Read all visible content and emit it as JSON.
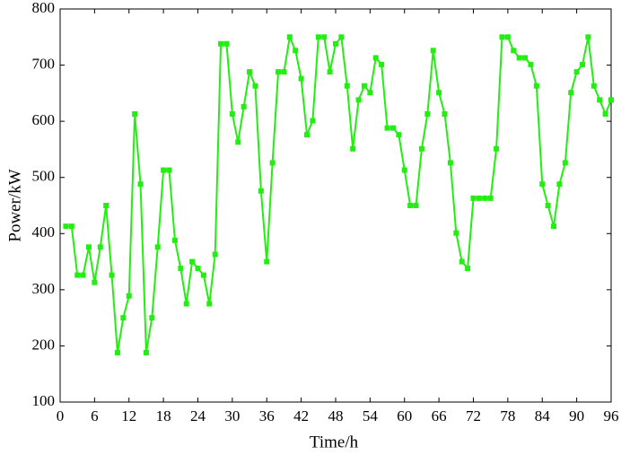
{
  "chart_data": {
    "type": "line",
    "x_label": "Time/h",
    "y_label": "Power/kW",
    "x": [
      1,
      2,
      3,
      4,
      5,
      6,
      7,
      8,
      9,
      10,
      11,
      12,
      13,
      14,
      15,
      16,
      17,
      18,
      19,
      20,
      21,
      22,
      23,
      24,
      25,
      26,
      27,
      28,
      29,
      30,
      31,
      32,
      33,
      34,
      35,
      36,
      37,
      38,
      39,
      40,
      41,
      42,
      43,
      44,
      45,
      46,
      47,
      48,
      49,
      50,
      51,
      52,
      53,
      54,
      55,
      56,
      57,
      58,
      59,
      60,
      61,
      62,
      63,
      64,
      65,
      66,
      67,
      68,
      69,
      70,
      71,
      72,
      73,
      74,
      75,
      76,
      77,
      78,
      79,
      80,
      81,
      82,
      83,
      84,
      85,
      86,
      87,
      88,
      89,
      90,
      91,
      92,
      93,
      94,
      95,
      96
    ],
    "color": "#22ee11",
    "values": [
      413,
      413,
      326,
      326,
      376,
      313,
      376,
      450,
      326,
      188,
      250,
      289,
      613,
      488,
      188,
      250,
      376,
      513,
      513,
      388,
      338,
      275,
      350,
      338,
      326,
      275,
      363,
      738,
      738,
      613,
      563,
      626,
      688,
      663,
      476,
      350,
      526,
      688,
      688,
      750,
      726,
      676,
      576,
      601,
      750,
      750,
      688,
      738,
      750,
      663,
      551,
      638,
      663,
      651,
      713,
      701,
      588,
      588,
      576,
      513,
      450,
      450,
      551,
      613,
      726,
      651,
      613,
      526,
      401,
      350,
      338,
      463,
      463,
      463,
      463,
      551,
      750,
      750,
      726,
      713,
      713,
      701,
      663,
      488,
      450,
      413,
      488,
      526,
      651,
      688,
      701,
      750,
      663,
      638,
      613,
      638
    ],
    "xlim": [
      0,
      96
    ],
    "xticks": [
      0,
      6,
      12,
      18,
      24,
      30,
      36,
      42,
      48,
      54,
      60,
      66,
      72,
      78,
      84,
      90,
      96
    ],
    "ylim": [
      100,
      800
    ],
    "yticks": [
      100,
      200,
      300,
      400,
      500,
      600,
      700,
      800
    ],
    "grid": false
  }
}
